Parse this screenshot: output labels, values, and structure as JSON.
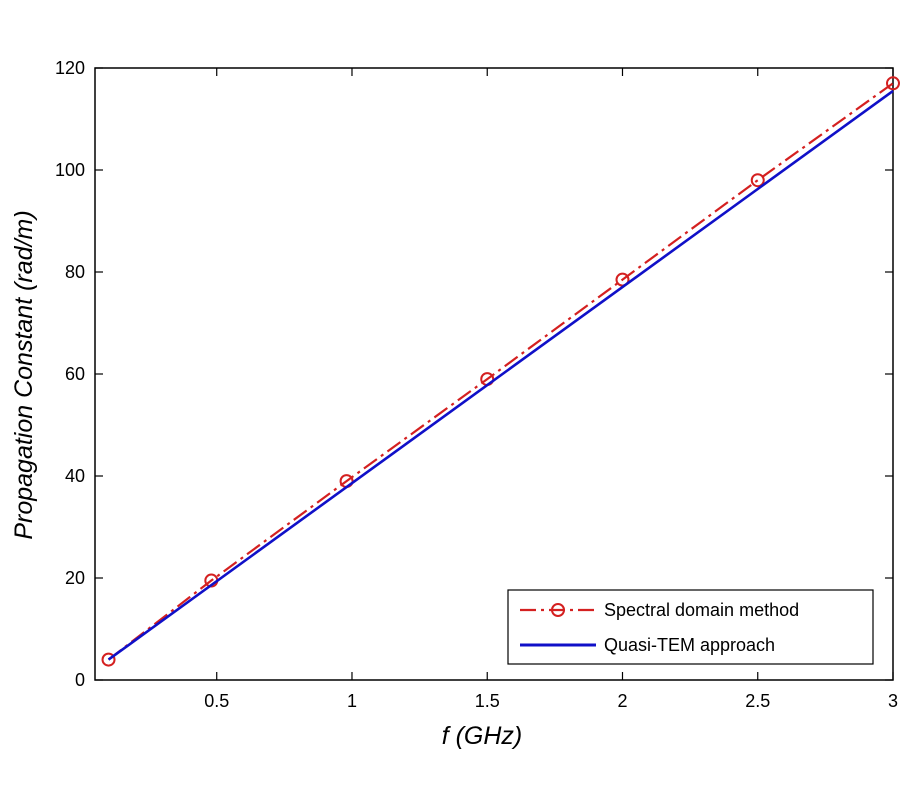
{
  "chart_data": {
    "type": "line",
    "title": "",
    "xlabel": "f (GHz)",
    "ylabel": "Propagation Constant (rad/m)",
    "xlim": [
      0.05,
      3.0
    ],
    "ylim": [
      0,
      120
    ],
    "x_ticks": [
      0.5,
      1,
      1.5,
      2,
      2.5,
      3
    ],
    "x_tick_labels": [
      "0.5",
      "1",
      "1.5",
      "2",
      "2.5",
      "3"
    ],
    "y_ticks": [
      0,
      20,
      40,
      60,
      80,
      100,
      120
    ],
    "y_tick_labels": [
      "0",
      "20",
      "40",
      "60",
      "80",
      "100",
      "120"
    ],
    "grid": false,
    "legend_position": "bottom-right",
    "series": [
      {
        "name": "Spectral domain method",
        "color": "#d42020",
        "line_style": "dash-dot",
        "marker": "circle",
        "x": [
          0.1,
          0.48,
          0.98,
          1.5,
          2.0,
          2.5,
          3.0
        ],
        "y": [
          4,
          19.5,
          39,
          59,
          78.5,
          98,
          117
        ]
      },
      {
        "name": "Quasi-TEM approach",
        "color": "#1010c8",
        "line_style": "solid",
        "marker": "none",
        "x": [
          0.1,
          3.0
        ],
        "y": [
          4,
          115.5
        ]
      }
    ]
  }
}
